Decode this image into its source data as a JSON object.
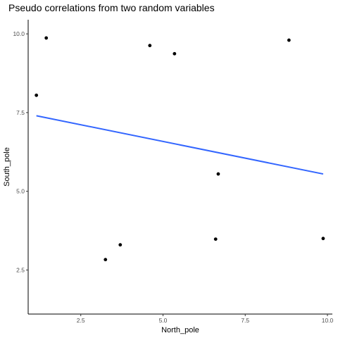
{
  "chart_data": {
    "type": "scatter",
    "title": "Pseudo correlations from two random variables",
    "xlabel": "North_pole",
    "ylabel": "South_pole",
    "xlim": [
      0.9,
      10.15
    ],
    "ylim": [
      1.1,
      10.45
    ],
    "x_ticks": [
      2.5,
      5.0,
      7.5,
      10.0
    ],
    "x_tick_labels": [
      "2.5",
      "5.0",
      "7.5",
      "10.0"
    ],
    "y_ticks": [
      2.5,
      5.0,
      7.5,
      10.0
    ],
    "y_tick_labels": [
      "2.5",
      "5.0",
      "7.5",
      "10.0"
    ],
    "grid": false,
    "points": [
      {
        "x": 1.15,
        "y": 8.05
      },
      {
        "x": 1.45,
        "y": 9.87
      },
      {
        "x": 3.25,
        "y": 2.83
      },
      {
        "x": 3.7,
        "y": 3.3
      },
      {
        "x": 4.6,
        "y": 9.63
      },
      {
        "x": 5.35,
        "y": 9.37
      },
      {
        "x": 6.6,
        "y": 3.48
      },
      {
        "x": 6.68,
        "y": 5.55
      },
      {
        "x": 8.83,
        "y": 9.8
      },
      {
        "x": 9.87,
        "y": 3.5
      }
    ],
    "fit_line": {
      "x": [
        1.15,
        9.87
      ],
      "y": [
        7.4,
        5.55
      ]
    },
    "colors": {
      "points": "#000000",
      "fit_line": "#3366ff",
      "axis": "#000000"
    }
  }
}
